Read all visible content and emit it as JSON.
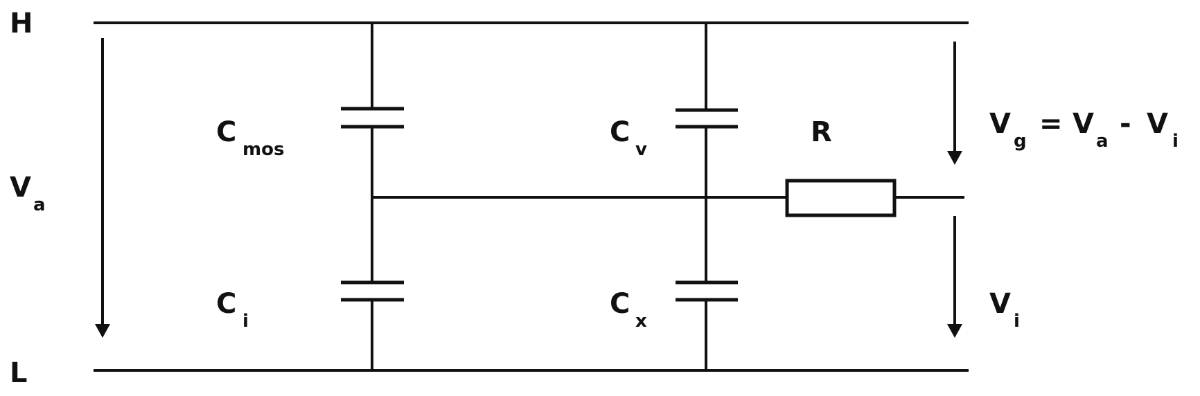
{
  "rails": {
    "high": "H",
    "low": "L"
  },
  "capacitors": {
    "c_mos": {
      "symbol": "C",
      "subscript": "mos"
    },
    "c_i": {
      "symbol": "C",
      "subscript": "i"
    },
    "c_v": {
      "symbol": "C",
      "subscript": "v"
    },
    "c_x": {
      "symbol": "C",
      "subscript": "x"
    }
  },
  "resistor": {
    "label": "R"
  },
  "voltages": {
    "v_a": {
      "symbol": "V",
      "subscript": "a"
    },
    "v_g": {
      "symbol": "V",
      "subscript": "g",
      "equals": "=",
      "term1_symbol": "V",
      "term1_subscript": "a",
      "minus": "-",
      "term2_symbol": "V",
      "term2_subscript": "i"
    },
    "v_i": {
      "symbol": "V",
      "subscript": "i"
    }
  },
  "colors": {
    "ink": "#111111",
    "background": "#ffffff"
  }
}
